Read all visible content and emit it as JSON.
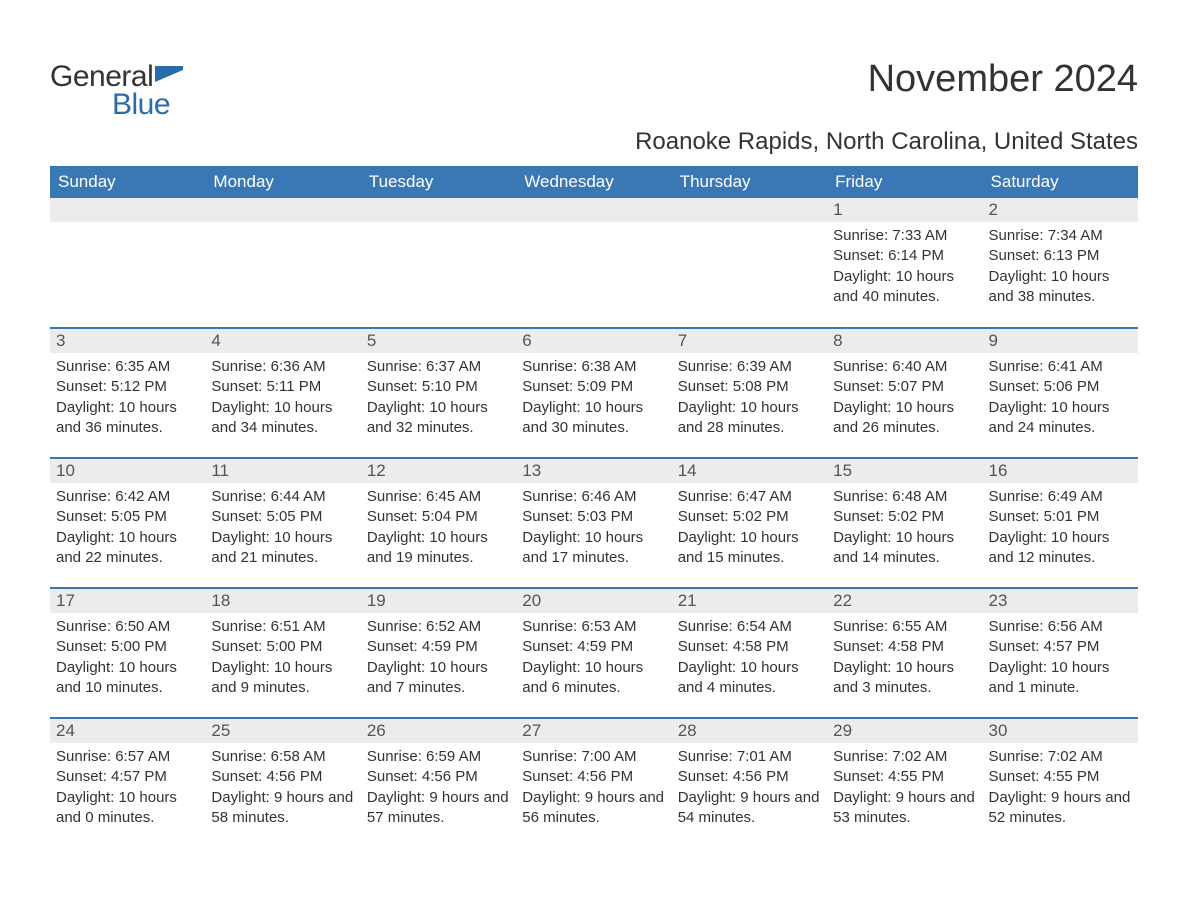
{
  "logo": {
    "general": "General",
    "blue": "Blue",
    "flag_color": "#2a6ca8"
  },
  "title": "November 2024",
  "location": "Roanoke Rapids, North Carolina, United States",
  "colors": {
    "header_bg": "#3a78b5",
    "header_text": "#ffffff",
    "daynum_bg": "#ececec",
    "body_text": "#333333",
    "rule": "#3a78b5"
  },
  "weekdays": [
    "Sunday",
    "Monday",
    "Tuesday",
    "Wednesday",
    "Thursday",
    "Friday",
    "Saturday"
  ],
  "weeks": [
    [
      null,
      null,
      null,
      null,
      null,
      {
        "n": "1",
        "sr": "Sunrise: 7:33 AM",
        "ss": "Sunset: 6:14 PM",
        "dl": "Daylight: 10 hours and 40 minutes."
      },
      {
        "n": "2",
        "sr": "Sunrise: 7:34 AM",
        "ss": "Sunset: 6:13 PM",
        "dl": "Daylight: 10 hours and 38 minutes."
      }
    ],
    [
      {
        "n": "3",
        "sr": "Sunrise: 6:35 AM",
        "ss": "Sunset: 5:12 PM",
        "dl": "Daylight: 10 hours and 36 minutes."
      },
      {
        "n": "4",
        "sr": "Sunrise: 6:36 AM",
        "ss": "Sunset: 5:11 PM",
        "dl": "Daylight: 10 hours and 34 minutes."
      },
      {
        "n": "5",
        "sr": "Sunrise: 6:37 AM",
        "ss": "Sunset: 5:10 PM",
        "dl": "Daylight: 10 hours and 32 minutes."
      },
      {
        "n": "6",
        "sr": "Sunrise: 6:38 AM",
        "ss": "Sunset: 5:09 PM",
        "dl": "Daylight: 10 hours and 30 minutes."
      },
      {
        "n": "7",
        "sr": "Sunrise: 6:39 AM",
        "ss": "Sunset: 5:08 PM",
        "dl": "Daylight: 10 hours and 28 minutes."
      },
      {
        "n": "8",
        "sr": "Sunrise: 6:40 AM",
        "ss": "Sunset: 5:07 PM",
        "dl": "Daylight: 10 hours and 26 minutes."
      },
      {
        "n": "9",
        "sr": "Sunrise: 6:41 AM",
        "ss": "Sunset: 5:06 PM",
        "dl": "Daylight: 10 hours and 24 minutes."
      }
    ],
    [
      {
        "n": "10",
        "sr": "Sunrise: 6:42 AM",
        "ss": "Sunset: 5:05 PM",
        "dl": "Daylight: 10 hours and 22 minutes."
      },
      {
        "n": "11",
        "sr": "Sunrise: 6:44 AM",
        "ss": "Sunset: 5:05 PM",
        "dl": "Daylight: 10 hours and 21 minutes."
      },
      {
        "n": "12",
        "sr": "Sunrise: 6:45 AM",
        "ss": "Sunset: 5:04 PM",
        "dl": "Daylight: 10 hours and 19 minutes."
      },
      {
        "n": "13",
        "sr": "Sunrise: 6:46 AM",
        "ss": "Sunset: 5:03 PM",
        "dl": "Daylight: 10 hours and 17 minutes."
      },
      {
        "n": "14",
        "sr": "Sunrise: 6:47 AM",
        "ss": "Sunset: 5:02 PM",
        "dl": "Daylight: 10 hours and 15 minutes."
      },
      {
        "n": "15",
        "sr": "Sunrise: 6:48 AM",
        "ss": "Sunset: 5:02 PM",
        "dl": "Daylight: 10 hours and 14 minutes."
      },
      {
        "n": "16",
        "sr": "Sunrise: 6:49 AM",
        "ss": "Sunset: 5:01 PM",
        "dl": "Daylight: 10 hours and 12 minutes."
      }
    ],
    [
      {
        "n": "17",
        "sr": "Sunrise: 6:50 AM",
        "ss": "Sunset: 5:00 PM",
        "dl": "Daylight: 10 hours and 10 minutes."
      },
      {
        "n": "18",
        "sr": "Sunrise: 6:51 AM",
        "ss": "Sunset: 5:00 PM",
        "dl": "Daylight: 10 hours and 9 minutes."
      },
      {
        "n": "19",
        "sr": "Sunrise: 6:52 AM",
        "ss": "Sunset: 4:59 PM",
        "dl": "Daylight: 10 hours and 7 minutes."
      },
      {
        "n": "20",
        "sr": "Sunrise: 6:53 AM",
        "ss": "Sunset: 4:59 PM",
        "dl": "Daylight: 10 hours and 6 minutes."
      },
      {
        "n": "21",
        "sr": "Sunrise: 6:54 AM",
        "ss": "Sunset: 4:58 PM",
        "dl": "Daylight: 10 hours and 4 minutes."
      },
      {
        "n": "22",
        "sr": "Sunrise: 6:55 AM",
        "ss": "Sunset: 4:58 PM",
        "dl": "Daylight: 10 hours and 3 minutes."
      },
      {
        "n": "23",
        "sr": "Sunrise: 6:56 AM",
        "ss": "Sunset: 4:57 PM",
        "dl": "Daylight: 10 hours and 1 minute."
      }
    ],
    [
      {
        "n": "24",
        "sr": "Sunrise: 6:57 AM",
        "ss": "Sunset: 4:57 PM",
        "dl": "Daylight: 10 hours and 0 minutes."
      },
      {
        "n": "25",
        "sr": "Sunrise: 6:58 AM",
        "ss": "Sunset: 4:56 PM",
        "dl": "Daylight: 9 hours and 58 minutes."
      },
      {
        "n": "26",
        "sr": "Sunrise: 6:59 AM",
        "ss": "Sunset: 4:56 PM",
        "dl": "Daylight: 9 hours and 57 minutes."
      },
      {
        "n": "27",
        "sr": "Sunrise: 7:00 AM",
        "ss": "Sunset: 4:56 PM",
        "dl": "Daylight: 9 hours and 56 minutes."
      },
      {
        "n": "28",
        "sr": "Sunrise: 7:01 AM",
        "ss": "Sunset: 4:56 PM",
        "dl": "Daylight: 9 hours and 54 minutes."
      },
      {
        "n": "29",
        "sr": "Sunrise: 7:02 AM",
        "ss": "Sunset: 4:55 PM",
        "dl": "Daylight: 9 hours and 53 minutes."
      },
      {
        "n": "30",
        "sr": "Sunrise: 7:02 AM",
        "ss": "Sunset: 4:55 PM",
        "dl": "Daylight: 9 hours and 52 minutes."
      }
    ]
  ]
}
